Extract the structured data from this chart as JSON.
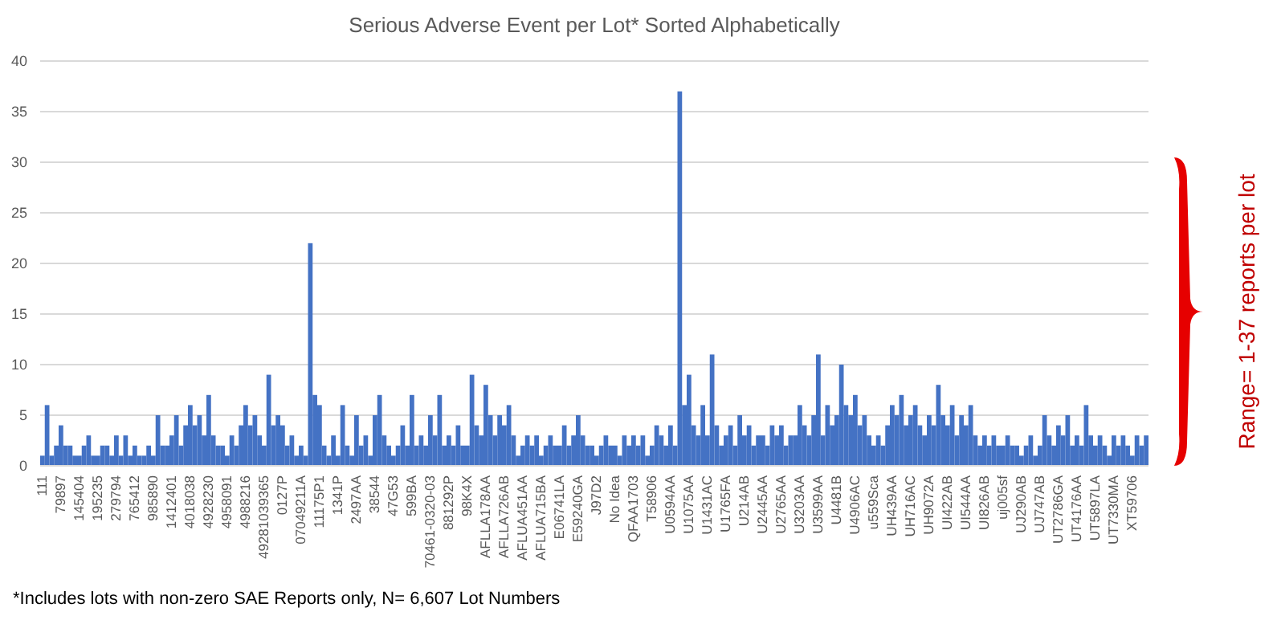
{
  "chart_data": {
    "type": "bar",
    "title": "Serious Adverse Event per Lot* Sorted Alphabetically",
    "categories": [
      "111",
      null,
      null,
      null,
      "79897",
      null,
      null,
      null,
      "145404",
      null,
      null,
      null,
      "195235",
      null,
      null,
      null,
      "279794",
      null,
      null,
      null,
      "765412",
      null,
      null,
      null,
      "985890",
      null,
      null,
      null,
      "1412401",
      null,
      null,
      null,
      "4018038",
      null,
      null,
      null,
      "4928230",
      null,
      null,
      null,
      "4958091",
      null,
      null,
      null,
      "4988216",
      null,
      null,
      null,
      "49281039365",
      null,
      null,
      null,
      "0127P",
      null,
      null,
      null,
      "07049211A",
      null,
      null,
      null,
      "11175P1",
      null,
      null,
      null,
      "1341P",
      null,
      null,
      null,
      "2497AA",
      null,
      null,
      null,
      "38544",
      null,
      null,
      null,
      "47G53",
      null,
      null,
      null,
      "599BA",
      null,
      null,
      null,
      "70461-0320-03",
      null,
      null,
      null,
      "881292P",
      null,
      null,
      null,
      "98K4X",
      null,
      null,
      null,
      "AFLLA178AA",
      null,
      null,
      null,
      "AFLLA726AB",
      null,
      null,
      null,
      "AFLUA451AA",
      null,
      null,
      null,
      "AFLUA715BA",
      null,
      null,
      null,
      "E06741LA",
      null,
      null,
      null,
      "E59240GA",
      null,
      null,
      null,
      "J97D2",
      null,
      null,
      null,
      "No Idea",
      null,
      null,
      null,
      "QFAA1703",
      null,
      null,
      null,
      "T58906",
      null,
      null,
      null,
      "U0594AA",
      null,
      null,
      null,
      "U1075AA",
      null,
      null,
      null,
      "U1431AC",
      null,
      null,
      null,
      "U1765FA",
      null,
      null,
      null,
      "U214AB",
      null,
      null,
      null,
      "U2445AA",
      null,
      null,
      null,
      "U2765AA",
      null,
      null,
      null,
      "U3203AA",
      null,
      null,
      null,
      "U3599AA",
      null,
      null,
      null,
      "U4481B",
      null,
      null,
      null,
      "U4906AC",
      null,
      null,
      null,
      "u559Sca",
      null,
      null,
      null,
      "UH439AA",
      null,
      null,
      null,
      "UH716AC",
      null,
      null,
      null,
      "UH9072A",
      null,
      null,
      null,
      "UI422AB",
      null,
      null,
      null,
      "UI544AA",
      null,
      null,
      null,
      "UI826AB",
      null,
      null,
      null,
      "uj005sf",
      null,
      null,
      null,
      "UJ290AB",
      null,
      null,
      null,
      "UJ747AB",
      null,
      null,
      null,
      "UT2786GA",
      null,
      null,
      null,
      "UT4176AA",
      null,
      null,
      null,
      "UT5897LA",
      null,
      null,
      null,
      "UT7330MA",
      null,
      null,
      null,
      "XT59706",
      null,
      null,
      null
    ],
    "values": [
      1,
      6,
      1,
      2,
      4,
      2,
      2,
      1,
      1,
      2,
      3,
      1,
      1,
      2,
      2,
      1,
      3,
      1,
      3,
      1,
      2,
      1,
      1,
      2,
      1,
      5,
      2,
      2,
      3,
      5,
      2,
      4,
      6,
      4,
      5,
      3,
      7,
      3,
      2,
      2,
      1,
      3,
      2,
      4,
      6,
      4,
      5,
      3,
      2,
      9,
      4,
      5,
      4,
      2,
      3,
      1,
      2,
      1,
      22,
      7,
      6,
      2,
      1,
      3,
      1,
      6,
      2,
      1,
      5,
      2,
      3,
      1,
      5,
      7,
      3,
      2,
      1,
      2,
      4,
      2,
      7,
      2,
      3,
      2,
      5,
      3,
      7,
      2,
      3,
      2,
      4,
      2,
      2,
      9,
      4,
      3,
      8,
      5,
      3,
      5,
      4,
      6,
      3,
      1,
      2,
      3,
      2,
      3,
      1,
      2,
      3,
      2,
      2,
      4,
      2,
      3,
      5,
      3,
      2,
      2,
      1,
      2,
      3,
      2,
      2,
      1,
      3,
      2,
      3,
      2,
      3,
      1,
      2,
      4,
      3,
      2,
      4,
      2,
      37,
      6,
      9,
      4,
      3,
      6,
      3,
      11,
      4,
      2,
      3,
      4,
      2,
      5,
      3,
      4,
      2,
      3,
      3,
      2,
      4,
      3,
      4,
      2,
      3,
      3,
      6,
      4,
      3,
      5,
      11,
      3,
      6,
      4,
      5,
      10,
      6,
      5,
      7,
      4,
      5,
      3,
      2,
      3,
      2,
      4,
      6,
      5,
      7,
      4,
      5,
      6,
      4,
      3,
      5,
      4,
      8,
      5,
      4,
      6,
      3,
      5,
      4,
      6,
      3,
      2,
      3,
      2,
      3,
      2,
      2,
      3,
      2,
      2,
      1,
      2,
      3,
      1,
      2,
      5,
      3,
      2,
      4,
      3,
      5,
      2,
      3,
      2,
      6,
      3,
      2,
      3,
      2,
      1,
      3,
      2,
      3,
      2,
      1,
      3,
      2,
      3
    ],
    "color": "#4472c4",
    "ylim": [
      0,
      40
    ],
    "yticks": [
      0,
      5,
      10,
      15,
      20,
      25,
      30,
      35,
      40
    ],
    "grid": "y",
    "annotations": [
      "*Includes lots with non-zero SAE Reports only, N= 6,607 Lot Numbers",
      "Range= 1-37 reports per lot"
    ]
  }
}
